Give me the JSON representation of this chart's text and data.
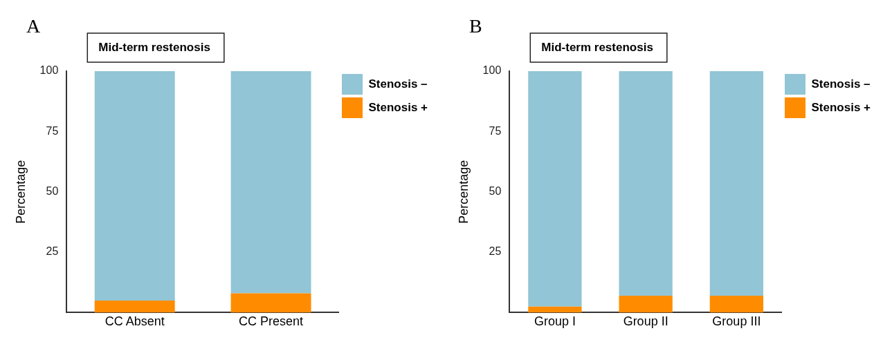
{
  "chart_data": [
    {
      "type": "bar",
      "title": "Mid-term restenosis",
      "ylabel": "Percentage",
      "annotations": [
        "A"
      ],
      "categories": [
        "CC Absent",
        "CC Present"
      ],
      "stacked": true,
      "series": [
        {
          "name": "Stenosis +",
          "color": "#ff8c00",
          "values": [
            5,
            8
          ]
        },
        {
          "name": "Stenosis –",
          "color": "#92c5d6",
          "values": [
            95,
            92
          ]
        }
      ],
      "ylim": [
        0,
        100
      ],
      "yticks": [
        25,
        50,
        75,
        100
      ],
      "grid": false,
      "legend": "top right"
    },
    {
      "type": "bar",
      "title": "Mid-term restenosis",
      "ylabel": "Percentage",
      "annotations": [
        "B"
      ],
      "categories": [
        "Group I",
        "Group II",
        "Group III"
      ],
      "stacked": true,
      "series": [
        {
          "name": "Stenosis +",
          "color": "#ff8c00",
          "values": [
            2.5,
            7,
            7
          ]
        },
        {
          "name": "Stenosis –",
          "color": "#92c5d6",
          "values": [
            97.5,
            93,
            93
          ]
        }
      ],
      "ylim": [
        0,
        100
      ],
      "yticks": [
        25,
        50,
        75,
        100
      ],
      "grid": false,
      "legend": "top right"
    }
  ]
}
